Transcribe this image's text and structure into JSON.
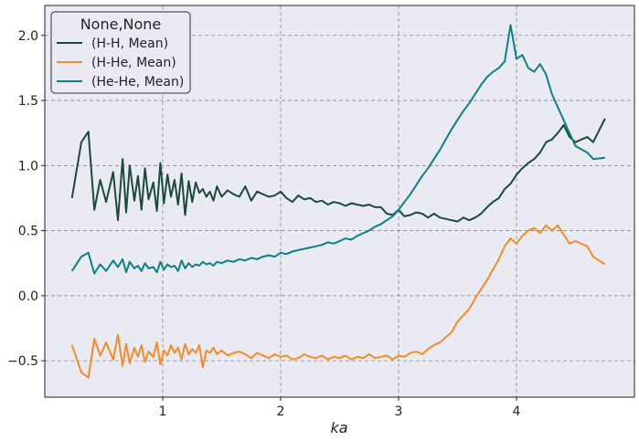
{
  "chart_data": {
    "type": "line",
    "title": "",
    "xlabel": "ka",
    "ylabel": "",
    "xlim": [
      0.0,
      5.0
    ],
    "ylim": [
      -0.78,
      2.23
    ],
    "xticks": [
      1,
      2,
      3,
      4
    ],
    "yticks": [
      -0.5,
      0.0,
      0.5,
      1.0,
      1.5,
      2.0
    ],
    "tick_labels_x": [
      "1",
      "2",
      "3",
      "4"
    ],
    "tick_labels_y": [
      "−0.5",
      "0.0",
      "0.5",
      "1.0",
      "1.5",
      "2.0"
    ],
    "grid": true,
    "grid_style": "dashed",
    "background": "#eaeaf2",
    "legend": {
      "title": "None,None",
      "placement": "top-left",
      "entries": [
        "(H-H, Mean)",
        "(H-He, Mean)",
        "(He-He, Mean)"
      ]
    },
    "series": [
      {
        "name": "(H-H, Mean)",
        "color": "#1a4a3a",
        "x": [
          0.23,
          0.31,
          0.37,
          0.42,
          0.47,
          0.52,
          0.58,
          0.62,
          0.66,
          0.69,
          0.72,
          0.76,
          0.79,
          0.82,
          0.85,
          0.88,
          0.92,
          0.95,
          0.98,
          1.01,
          1.04,
          1.07,
          1.1,
          1.13,
          1.16,
          1.19,
          1.22,
          1.25,
          1.28,
          1.31,
          1.34,
          1.37,
          1.4,
          1.43,
          1.46,
          1.5,
          1.55,
          1.6,
          1.65,
          1.7,
          1.75,
          1.8,
          1.85,
          1.9,
          1.95,
          2.0,
          2.05,
          2.1,
          2.15,
          2.2,
          2.25,
          2.3,
          2.35,
          2.4,
          2.45,
          2.5,
          2.55,
          2.6,
          2.65,
          2.7,
          2.75,
          2.8,
          2.85,
          2.9,
          2.95,
          3.0,
          3.05,
          3.1,
          3.15,
          3.2,
          3.25,
          3.3,
          3.35,
          3.4,
          3.45,
          3.5,
          3.55,
          3.6,
          3.65,
          3.7,
          3.75,
          3.8,
          3.85,
          3.9,
          3.95,
          4.0,
          4.05,
          4.1,
          4.15,
          4.2,
          4.25,
          4.3,
          4.35,
          4.4,
          4.45,
          4.5,
          4.6,
          4.65,
          4.75
        ],
        "values": [
          0.75,
          1.18,
          1.26,
          0.66,
          0.89,
          0.72,
          0.95,
          0.58,
          1.05,
          0.64,
          1.0,
          0.73,
          0.92,
          0.66,
          0.98,
          0.74,
          0.87,
          0.65,
          1.02,
          0.71,
          0.93,
          0.76,
          0.89,
          0.7,
          0.94,
          0.62,
          0.88,
          0.72,
          0.87,
          0.79,
          0.82,
          0.76,
          0.8,
          0.73,
          0.84,
          0.76,
          0.81,
          0.78,
          0.76,
          0.84,
          0.73,
          0.8,
          0.78,
          0.76,
          0.77,
          0.8,
          0.75,
          0.72,
          0.77,
          0.74,
          0.75,
          0.72,
          0.73,
          0.7,
          0.72,
          0.71,
          0.69,
          0.71,
          0.7,
          0.69,
          0.7,
          0.68,
          0.68,
          0.63,
          0.62,
          0.66,
          0.61,
          0.62,
          0.64,
          0.63,
          0.6,
          0.63,
          0.6,
          0.59,
          0.58,
          0.57,
          0.6,
          0.58,
          0.6,
          0.63,
          0.68,
          0.72,
          0.75,
          0.82,
          0.86,
          0.93,
          0.98,
          1.02,
          1.05,
          1.1,
          1.18,
          1.2,
          1.25,
          1.31,
          1.22,
          1.18,
          1.22,
          1.18,
          1.36
        ]
      },
      {
        "name": "(H-He, Mean)",
        "color": "#f28c28",
        "x": [
          0.23,
          0.31,
          0.37,
          0.42,
          0.47,
          0.52,
          0.58,
          0.62,
          0.66,
          0.69,
          0.72,
          0.76,
          0.79,
          0.82,
          0.85,
          0.88,
          0.92,
          0.95,
          0.98,
          1.01,
          1.04,
          1.07,
          1.1,
          1.13,
          1.16,
          1.19,
          1.22,
          1.25,
          1.28,
          1.31,
          1.34,
          1.37,
          1.4,
          1.43,
          1.46,
          1.5,
          1.55,
          1.6,
          1.65,
          1.7,
          1.75,
          1.8,
          1.85,
          1.9,
          1.95,
          2.0,
          2.05,
          2.1,
          2.15,
          2.2,
          2.25,
          2.3,
          2.35,
          2.4,
          2.45,
          2.5,
          2.55,
          2.6,
          2.65,
          2.7,
          2.75,
          2.8,
          2.85,
          2.9,
          2.95,
          3.0,
          3.05,
          3.1,
          3.15,
          3.2,
          3.25,
          3.3,
          3.35,
          3.4,
          3.45,
          3.5,
          3.55,
          3.6,
          3.65,
          3.7,
          3.75,
          3.8,
          3.85,
          3.9,
          3.95,
          4.0,
          4.05,
          4.1,
          4.15,
          4.2,
          4.25,
          4.3,
          4.35,
          4.4,
          4.45,
          4.5,
          4.6,
          4.65,
          4.75
        ],
        "values": [
          -0.38,
          -0.59,
          -0.63,
          -0.33,
          -0.46,
          -0.36,
          -0.49,
          -0.3,
          -0.54,
          -0.37,
          -0.52,
          -0.4,
          -0.47,
          -0.38,
          -0.51,
          -0.43,
          -0.47,
          -0.36,
          -0.53,
          -0.42,
          -0.46,
          -0.38,
          -0.44,
          -0.4,
          -0.49,
          -0.37,
          -0.45,
          -0.41,
          -0.44,
          -0.38,
          -0.55,
          -0.42,
          -0.44,
          -0.4,
          -0.45,
          -0.42,
          -0.46,
          -0.44,
          -0.43,
          -0.45,
          -0.48,
          -0.44,
          -0.46,
          -0.48,
          -0.45,
          -0.47,
          -0.46,
          -0.49,
          -0.48,
          -0.45,
          -0.47,
          -0.48,
          -0.46,
          -0.49,
          -0.47,
          -0.48,
          -0.46,
          -0.49,
          -0.47,
          -0.48,
          -0.45,
          -0.48,
          -0.47,
          -0.46,
          -0.49,
          -0.46,
          -0.47,
          -0.44,
          -0.43,
          -0.45,
          -0.41,
          -0.38,
          -0.36,
          -0.32,
          -0.28,
          -0.2,
          -0.15,
          -0.1,
          -0.02,
          0.05,
          0.12,
          0.2,
          0.28,
          0.38,
          0.44,
          0.4,
          0.46,
          0.5,
          0.52,
          0.48,
          0.54,
          0.5,
          0.54,
          0.47,
          0.4,
          0.42,
          0.38,
          0.3,
          0.24
        ]
      },
      {
        "name": "(He-He, Mean)",
        "color": "#0b8185",
        "x": [
          0.23,
          0.31,
          0.37,
          0.42,
          0.47,
          0.52,
          0.58,
          0.62,
          0.66,
          0.69,
          0.72,
          0.76,
          0.79,
          0.82,
          0.85,
          0.88,
          0.92,
          0.95,
          0.98,
          1.01,
          1.04,
          1.07,
          1.1,
          1.13,
          1.16,
          1.19,
          1.22,
          1.25,
          1.28,
          1.31,
          1.34,
          1.37,
          1.4,
          1.43,
          1.46,
          1.5,
          1.55,
          1.6,
          1.65,
          1.7,
          1.75,
          1.8,
          1.85,
          1.9,
          1.95,
          2.0,
          2.05,
          2.1,
          2.15,
          2.2,
          2.25,
          2.3,
          2.35,
          2.4,
          2.45,
          2.5,
          2.55,
          2.6,
          2.65,
          2.7,
          2.75,
          2.8,
          2.85,
          2.9,
          2.95,
          3.0,
          3.05,
          3.1,
          3.15,
          3.2,
          3.25,
          3.3,
          3.35,
          3.4,
          3.45,
          3.5,
          3.55,
          3.6,
          3.65,
          3.7,
          3.75,
          3.8,
          3.85,
          3.9,
          3.95,
          4.0,
          4.05,
          4.1,
          4.15,
          4.2,
          4.25,
          4.3,
          4.35,
          4.4,
          4.45,
          4.5,
          4.6,
          4.65,
          4.75
        ],
        "values": [
          0.19,
          0.3,
          0.33,
          0.17,
          0.24,
          0.19,
          0.27,
          0.22,
          0.28,
          0.18,
          0.26,
          0.21,
          0.23,
          0.19,
          0.25,
          0.21,
          0.22,
          0.18,
          0.26,
          0.2,
          0.24,
          0.22,
          0.23,
          0.19,
          0.27,
          0.21,
          0.25,
          0.22,
          0.24,
          0.23,
          0.26,
          0.24,
          0.25,
          0.23,
          0.26,
          0.25,
          0.27,
          0.26,
          0.28,
          0.27,
          0.29,
          0.28,
          0.3,
          0.31,
          0.3,
          0.33,
          0.32,
          0.34,
          0.35,
          0.36,
          0.37,
          0.38,
          0.39,
          0.41,
          0.4,
          0.42,
          0.44,
          0.43,
          0.46,
          0.48,
          0.5,
          0.53,
          0.55,
          0.58,
          0.61,
          0.66,
          0.72,
          0.78,
          0.85,
          0.92,
          0.98,
          1.05,
          1.12,
          1.2,
          1.28,
          1.35,
          1.42,
          1.48,
          1.55,
          1.62,
          1.68,
          1.72,
          1.75,
          1.8,
          2.08,
          1.82,
          1.85,
          1.75,
          1.72,
          1.78,
          1.7,
          1.55,
          1.45,
          1.35,
          1.25,
          1.15,
          1.1,
          1.05,
          1.06
        ]
      }
    ]
  }
}
